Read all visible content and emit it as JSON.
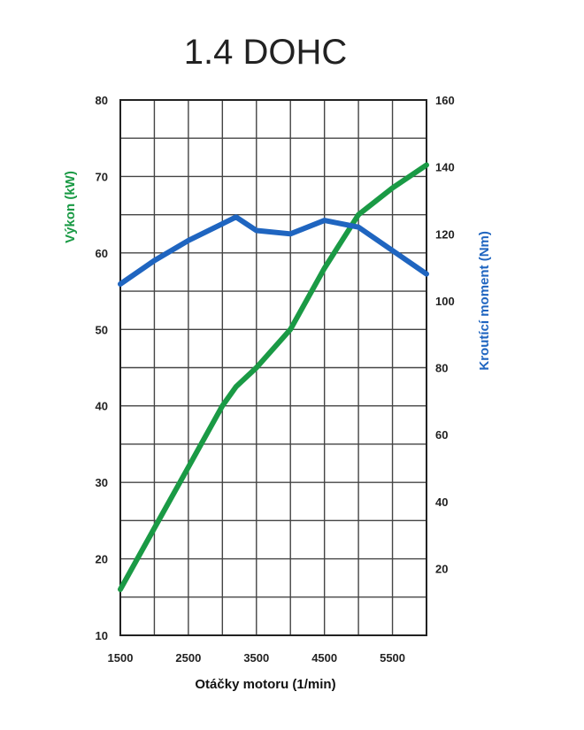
{
  "chart_data": {
    "type": "line",
    "title": "1.4 DOHC",
    "xlabel": "Otáčky motoru (1/min)",
    "ylabel_left": "Výkon (kW)",
    "ylabel_right": "Kroutící moment (Nm)",
    "xlim": [
      1500,
      6000
    ],
    "ylim_left": [
      10,
      80
    ],
    "ylim_right": [
      0,
      160
    ],
    "x_tick_labels": [
      "1500",
      "2500",
      "3500",
      "4500",
      "5500"
    ],
    "x_tick_values": [
      1500,
      2500,
      3500,
      4500,
      5500
    ],
    "y_left_tick_labels": [
      "10",
      "20",
      "30",
      "40",
      "50",
      "60",
      "70",
      "80"
    ],
    "y_left_tick_values": [
      10,
      20,
      30,
      40,
      50,
      60,
      70,
      80
    ],
    "y_right_tick_labels": [
      "20",
      "40",
      "60",
      "80",
      "100",
      "120",
      "140",
      "160"
    ],
    "y_right_tick_values": [
      20,
      40,
      60,
      80,
      100,
      120,
      140,
      160
    ],
    "grid": true,
    "series": [
      {
        "axis": "left",
        "color": "#1a9a45",
        "x": [
          1500,
          2000,
          2500,
          3000,
          3200,
          3500,
          4000,
          4500,
          5000,
          5500,
          6000
        ],
        "y": [
          16,
          24,
          32,
          40,
          42.5,
          45,
          50,
          58,
          65,
          68.5,
          71.5
        ]
      },
      {
        "axis": "right",
        "color": "#1f65c0",
        "x": [
          1500,
          2000,
          2500,
          3000,
          3200,
          3500,
          4000,
          4500,
          5000,
          5500,
          6000
        ],
        "y": [
          105,
          112,
          118,
          123,
          125,
          121,
          120,
          124,
          122,
          115,
          108
        ]
      }
    ]
  }
}
